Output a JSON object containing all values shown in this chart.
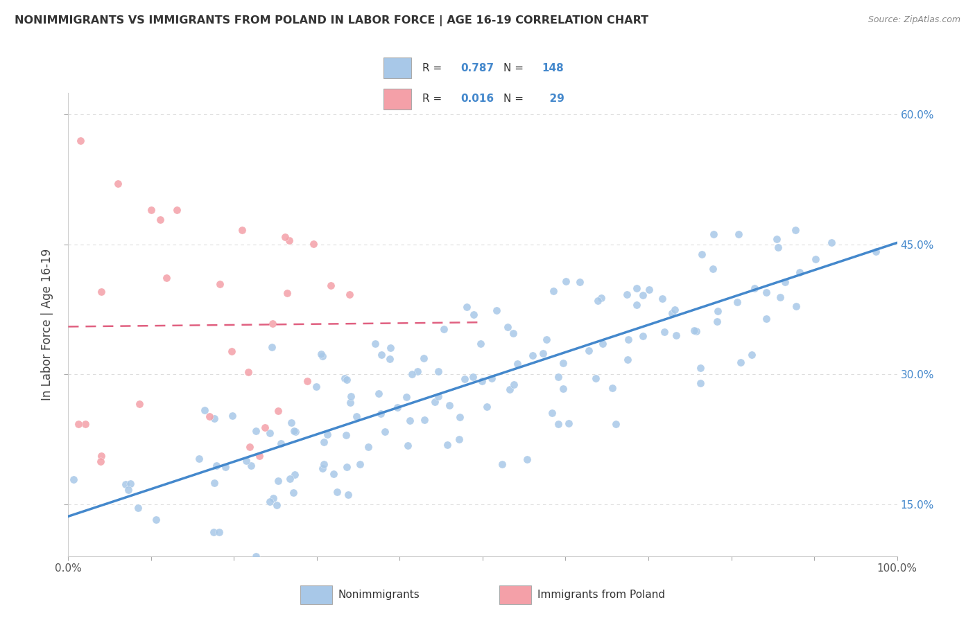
{
  "title": "NONIMMIGRANTS VS IMMIGRANTS FROM POLAND IN LABOR FORCE | AGE 16-19 CORRELATION CHART",
  "source": "Source: ZipAtlas.com",
  "ylabel": "In Labor Force | Age 16-19",
  "xlim": [
    0.0,
    1.0
  ],
  "ylim": [
    0.09,
    0.625
  ],
  "yticks": [
    0.15,
    0.3,
    0.45,
    0.6
  ],
  "ytick_labels": [
    "15.0%",
    "30.0%",
    "45.0%",
    "60.0%"
  ],
  "legend_label1": "Nonimmigrants",
  "legend_label2": "Immigrants from Poland",
  "R1": 0.787,
  "N1": 148,
  "R2": 0.016,
  "N2": 29,
  "blue_color": "#a8c8e8",
  "pink_color": "#f4a0a8",
  "blue_line_color": "#4488cc",
  "pink_line_color": "#e06080",
  "title_color": "#333333",
  "tick_color_right": "#4488cc",
  "background_color": "#ffffff",
  "grid_color": "#dddddd",
  "blue_intercept": 0.13,
  "blue_slope": 0.32,
  "pink_intercept": 0.355,
  "pink_slope": 0.01
}
